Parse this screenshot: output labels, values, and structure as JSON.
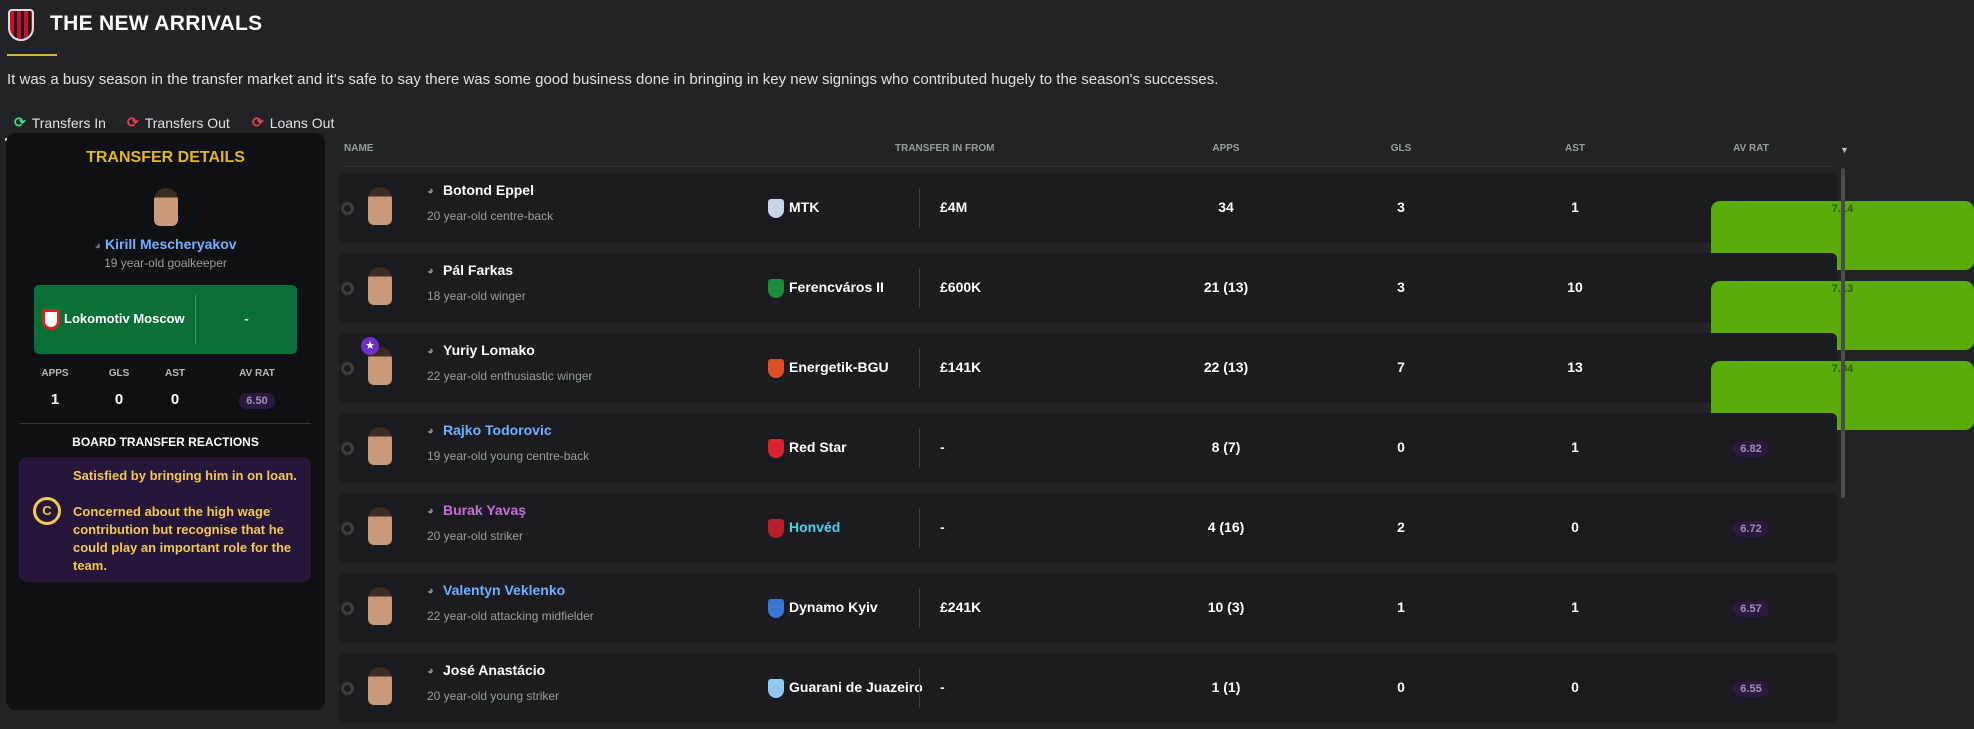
{
  "header": {
    "title": "THE NEW ARRIVALS",
    "description": "It was a busy season in the transfer market and it's safe to say there was some good business done in bringing in key new signings who contributed hugely to the season's successes."
  },
  "tabs": [
    {
      "label": "Transfers In",
      "icon": "transfer-in-icon",
      "active": true
    },
    {
      "label": "Transfers Out",
      "icon": "transfer-out-icon"
    },
    {
      "label": "Loans Out",
      "icon": "loan-out-icon"
    }
  ],
  "details": {
    "title": "TRANSFER DETAILS",
    "name": "Kirill Mescheryakov",
    "subtitle": "19 year-old goalkeeper",
    "club": "Lokomotiv Moscow",
    "fee": "-",
    "stats": [
      {
        "label": "APPS",
        "value": "1"
      },
      {
        "label": "GLS",
        "value": "0"
      },
      {
        "label": "AST",
        "value": "0"
      },
      {
        "label": "AV RAT",
        "value": "6.50"
      }
    ],
    "board_title": "BOARD TRANSFER REACTIONS",
    "reaction_grade": "C",
    "reaction_1": "Satisfied by bringing him in on loan.",
    "reaction_2": "Concerned about the high wage contribution but recognise that he could play an important role for the team."
  },
  "columns": {
    "name": "NAME",
    "from": "TRANSFER IN FROM",
    "apps": "APPS",
    "gls": "GLS",
    "ast": "AST",
    "rat": "AV RAT"
  },
  "colors": {
    "accent": "#e0b526",
    "rating_high": "#5aac0a",
    "rating_low": "#2a1a3d",
    "panel_green": "#0a6f37",
    "reaction_bg": "#26163a"
  },
  "rows": [
    {
      "name": "Botond Eppel",
      "sub": "20 year-old centre-back",
      "club": "MTK",
      "fee": "£4M",
      "apps": "34",
      "gls": "3",
      "ast": "1",
      "rat": "7.14",
      "rat_class": "green",
      "name_color": "#ffffff",
      "club_color": "#ffffff",
      "logo": "#c9d3e6"
    },
    {
      "name": "Pál Farkas",
      "sub": "18 year-old winger",
      "club": "Ferencváros II",
      "fee": "£600K",
      "apps": "21 (13)",
      "gls": "3",
      "ast": "10",
      "rat": "7.13",
      "rat_class": "green",
      "name_color": "#ffffff",
      "club_color": "#ffffff",
      "logo": "#1e8b3a"
    },
    {
      "name": "Yuriy Lomako",
      "sub": "22 year-old enthusiastic winger",
      "club": "Energetik-BGU",
      "fee": "£141K",
      "apps": "22 (13)",
      "gls": "7",
      "ast": "13",
      "rat": "7.04",
      "rat_class": "green",
      "name_color": "#ffffff",
      "club_color": "#ffffff",
      "logo": "#e0502a",
      "star": true
    },
    {
      "name": "Rajko Todorovic",
      "sub": "19 year-old young centre-back",
      "club": "Red Star",
      "fee": "-",
      "apps": "8 (7)",
      "gls": "0",
      "ast": "1",
      "rat": "6.82",
      "rat_class": "purple",
      "name_color": "#6fb1ff",
      "club_color": "#ffffff",
      "logo": "#d9232e"
    },
    {
      "name": "Burak Yavaş",
      "sub": "20 year-old striker",
      "club": "Honvéd",
      "fee": "-",
      "apps": "4 (16)",
      "gls": "2",
      "ast": "0",
      "rat": "6.72",
      "rat_class": "purple",
      "name_color": "#c46fd6",
      "club_color": "#4fd1e8",
      "logo": "#b8202e"
    },
    {
      "name": "Valentyn Veklenko",
      "sub": "22 year-old attacking midfielder",
      "club": "Dynamo Kyiv",
      "fee": "£241K",
      "apps": "10 (3)",
      "gls": "1",
      "ast": "1",
      "rat": "6.57",
      "rat_class": "purple",
      "name_color": "#6fb1ff",
      "club_color": "#ffffff",
      "logo": "#3b78d1"
    },
    {
      "name": "José Anastácio",
      "sub": "20 year-old young striker",
      "club": "Guarani de Juazeiro",
      "fee": "-",
      "apps": "1 (1)",
      "gls": "0",
      "ast": "0",
      "rat": "6.55",
      "rat_class": "purple",
      "name_color": "#ffffff",
      "club_color": "#ffffff",
      "logo": "#8fc8f0"
    }
  ]
}
